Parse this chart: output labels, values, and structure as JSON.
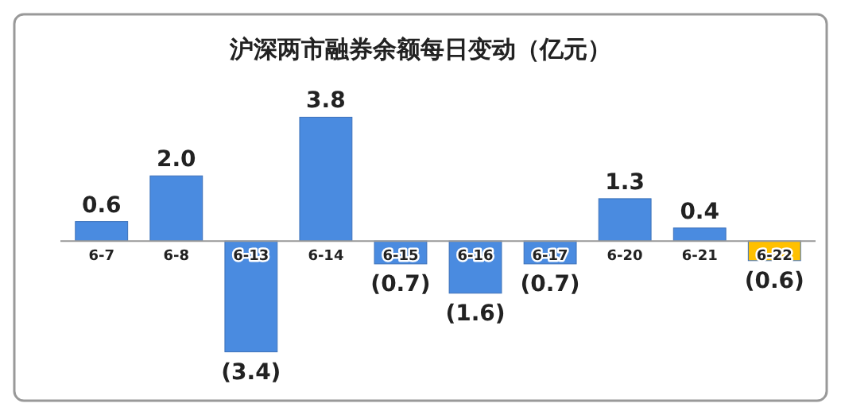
{
  "chart_data": {
    "type": "bar",
    "title": "沪深两市融券余额每日变动（亿元）",
    "categories": [
      "6-7",
      "6-8",
      "6-13",
      "6-14",
      "6-15",
      "6-16",
      "6-17",
      "6-20",
      "6-21",
      "6-22"
    ],
    "values": [
      0.6,
      2.0,
      -3.4,
      3.8,
      -0.7,
      -1.6,
      -0.7,
      1.3,
      0.4,
      -0.6
    ],
    "value_labels": [
      "0.6",
      "2.0",
      "(3.4)",
      "3.8",
      "(0.7)",
      "(1.6)",
      "(0.7)",
      "1.3",
      "0.4",
      "(0.6)"
    ],
    "colors": [
      "#4a8be0",
      "#4a8be0",
      "#4a8be0",
      "#4a8be0",
      "#4a8be0",
      "#4a8be0",
      "#4a8be0",
      "#4a8be0",
      "#4a8be0",
      "#ffc000"
    ]
  }
}
